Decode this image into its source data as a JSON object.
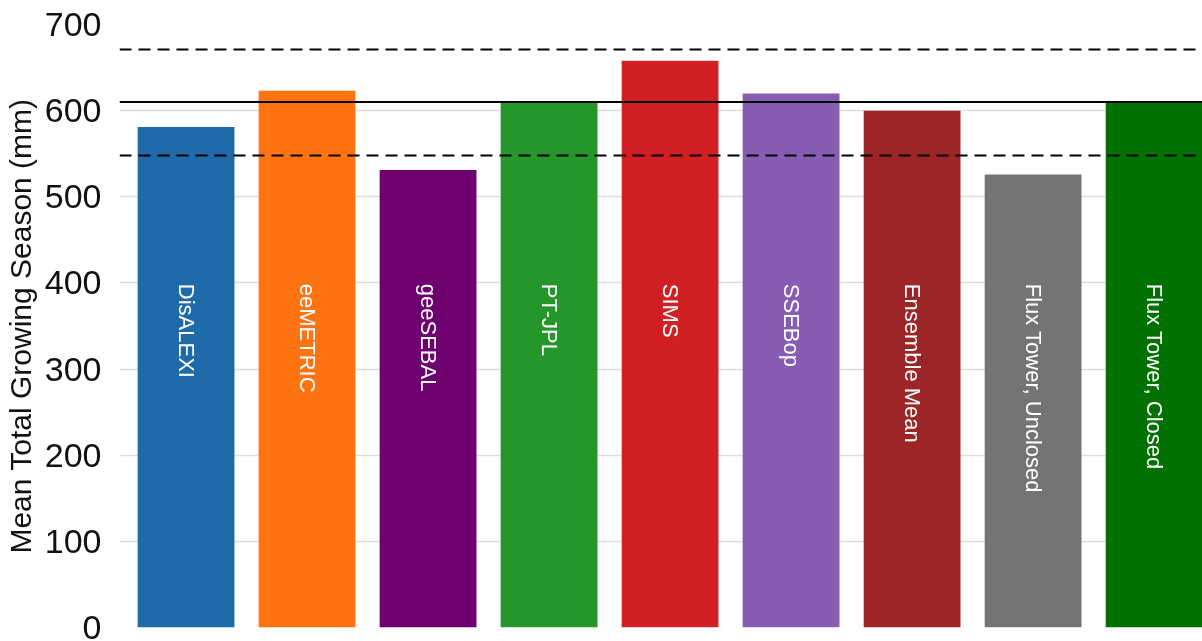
{
  "chart_data": {
    "type": "bar",
    "ylabel": "Mean Total Growing Season (mm)",
    "categories": [
      "DisALEXI",
      "eeMETRIC",
      "geeSEBAL",
      "PT-JPL",
      "SIMS",
      "SSEBop",
      "Ensemble Mean",
      "Flux Tower, Unclosed",
      "Flux Tower, Closed"
    ],
    "values": [
      581,
      623,
      531,
      610,
      658,
      620,
      600,
      526,
      610
    ],
    "colors": [
      "#1f6aa9",
      "#ff7410",
      "#6f006f",
      "#25962a",
      "#d02023",
      "#875cb3",
      "#9b2527",
      "#747474",
      "#017101"
    ],
    "ylim": [
      0,
      700
    ],
    "yticks": [
      0,
      100,
      200,
      300,
      400,
      500,
      600,
      700
    ],
    "grid": "y",
    "tick_labels": "y",
    "ref_lines": [
      {
        "axis": "y",
        "value": 671,
        "line_style": "dashed",
        "color": "#000000"
      },
      {
        "axis": "y",
        "value": 610,
        "line_style": "solid",
        "color": "#000000"
      },
      {
        "axis": "y",
        "value": 548,
        "line_style": "dashed",
        "color": "#000000"
      }
    ]
  }
}
